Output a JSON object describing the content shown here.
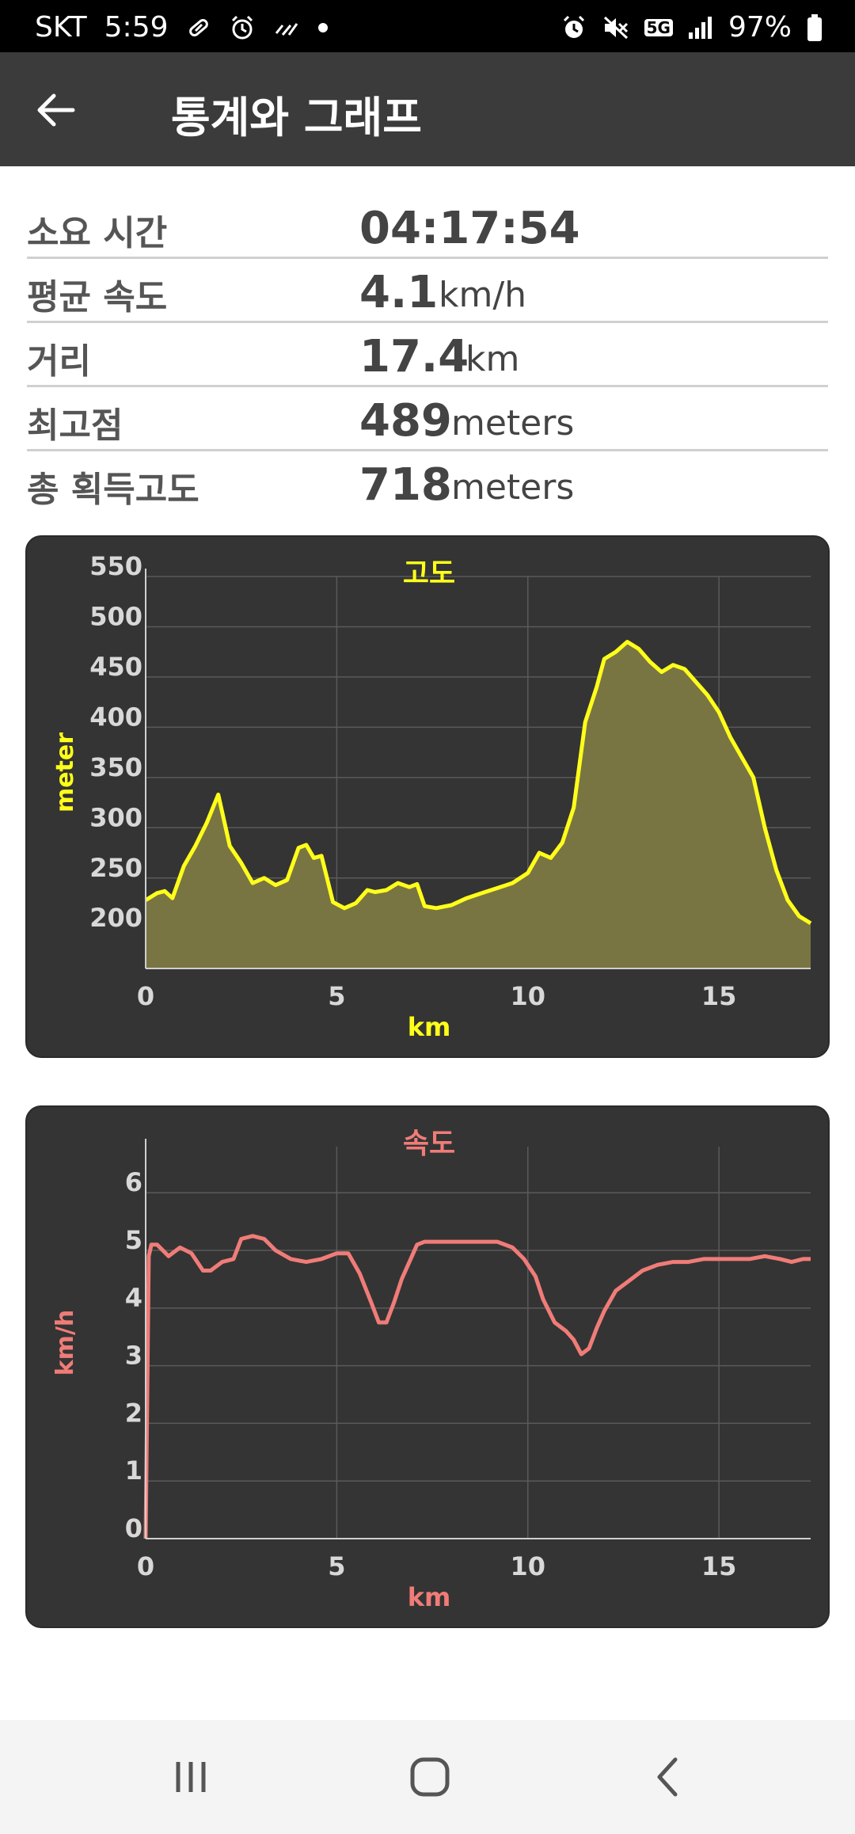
{
  "status_bar": {
    "carrier": "SKT",
    "time": "5:59",
    "network": "5G",
    "battery": "97%",
    "left_icons": [
      "pill-icon",
      "alarm-icon",
      "signal-lines-icon",
      "dot-icon"
    ],
    "right_icons": [
      "alarm-icon",
      "mute-icon",
      "5g-icon",
      "signal-icon",
      "battery-icon"
    ]
  },
  "header": {
    "title": "통계와 그래프",
    "back_icon": "arrow-left-icon"
  },
  "stats": [
    {
      "label": "소요 시간",
      "value": "04:17:54",
      "unit": ""
    },
    {
      "label": "평균 속도",
      "value": "4.1",
      "unit": "km/h"
    },
    {
      "label": "거리",
      "value": "17.4",
      "unit": "km"
    },
    {
      "label": "최고점",
      "value": "489",
      "unit": "meters"
    },
    {
      "label": "총 획득고도",
      "value": "718",
      "unit": "meters"
    }
  ],
  "chart_data": [
    {
      "type": "area",
      "title": "고도",
      "xlabel": "km",
      "ylabel": "meter",
      "xlim": [
        0,
        17.4
      ],
      "ylim": [
        160,
        550
      ],
      "xticks": [
        0,
        5,
        10,
        15
      ],
      "yticks": [
        200,
        250,
        300,
        350,
        400,
        450,
        500,
        550
      ],
      "grid": true,
      "color": "#ffff1a",
      "fill_color": "#797542",
      "x": [
        0,
        0.3,
        0.5,
        0.7,
        1.0,
        1.3,
        1.6,
        1.9,
        2.2,
        2.5,
        2.8,
        3.1,
        3.4,
        3.7,
        4.0,
        4.2,
        4.4,
        4.6,
        4.9,
        5.2,
        5.5,
        5.8,
        6.0,
        6.3,
        6.6,
        6.9,
        7.1,
        7.3,
        7.6,
        8.0,
        8.4,
        8.8,
        9.2,
        9.6,
        10.0,
        10.3,
        10.6,
        10.9,
        11.2,
        11.5,
        11.8,
        12.0,
        12.3,
        12.6,
        12.9,
        13.2,
        13.5,
        13.8,
        14.1,
        14.4,
        14.7,
        15.0,
        15.3,
        15.6,
        15.9,
        16.2,
        16.5,
        16.8,
        17.1,
        17.4
      ],
      "y": [
        228,
        235,
        237,
        230,
        262,
        282,
        305,
        333,
        282,
        265,
        245,
        250,
        243,
        248,
        280,
        283,
        270,
        272,
        226,
        220,
        225,
        238,
        236,
        238,
        245,
        241,
        244,
        222,
        220,
        223,
        230,
        235,
        240,
        245,
        255,
        275,
        270,
        285,
        320,
        405,
        440,
        468,
        475,
        485,
        478,
        465,
        455,
        462,
        458,
        445,
        432,
        415,
        390,
        370,
        350,
        300,
        258,
        228,
        212,
        205
      ]
    },
    {
      "type": "line",
      "title": "속도",
      "xlabel": "km",
      "ylabel": "km/h",
      "xlim": [
        0,
        17.4
      ],
      "ylim": [
        0,
        6.8
      ],
      "xticks": [
        0,
        5,
        10,
        15
      ],
      "yticks": [
        0,
        1,
        2,
        3,
        4,
        5,
        6
      ],
      "grid": true,
      "color": "#f07c78",
      "x": [
        0,
        0.08,
        0.15,
        0.3,
        0.6,
        0.9,
        1.2,
        1.5,
        1.7,
        2.0,
        2.3,
        2.5,
        2.8,
        3.1,
        3.4,
        3.8,
        4.2,
        4.6,
        5.0,
        5.3,
        5.6,
        5.9,
        6.1,
        6.3,
        6.5,
        6.7,
        6.9,
        7.1,
        7.3,
        7.6,
        8.0,
        8.4,
        8.8,
        9.2,
        9.6,
        9.9,
        10.2,
        10.4,
        10.7,
        11.0,
        11.2,
        11.4,
        11.6,
        11.8,
        12.0,
        12.3,
        12.6,
        13.0,
        13.4,
        13.8,
        14.2,
        14.6,
        15.0,
        15.4,
        15.8,
        16.2,
        16.6,
        16.9,
        17.2,
        17.4
      ],
      "y": [
        0,
        4.9,
        5.1,
        5.1,
        4.9,
        5.05,
        4.95,
        4.65,
        4.65,
        4.8,
        4.85,
        5.2,
        5.25,
        5.2,
        5.0,
        4.85,
        4.8,
        4.85,
        4.95,
        4.95,
        4.6,
        4.1,
        3.75,
        3.75,
        4.1,
        4.5,
        4.8,
        5.1,
        5.15,
        5.15,
        5.15,
        5.15,
        5.15,
        5.15,
        5.05,
        4.85,
        4.55,
        4.15,
        3.75,
        3.6,
        3.45,
        3.2,
        3.3,
        3.65,
        3.95,
        4.3,
        4.45,
        4.65,
        4.75,
        4.8,
        4.8,
        4.85,
        4.85,
        4.85,
        4.85,
        4.9,
        4.85,
        4.8,
        4.85,
        4.85
      ]
    }
  ],
  "nav": {
    "recent_icon": "recent-apps-icon",
    "home_icon": "home-icon",
    "back_icon": "back-chevron-icon"
  }
}
